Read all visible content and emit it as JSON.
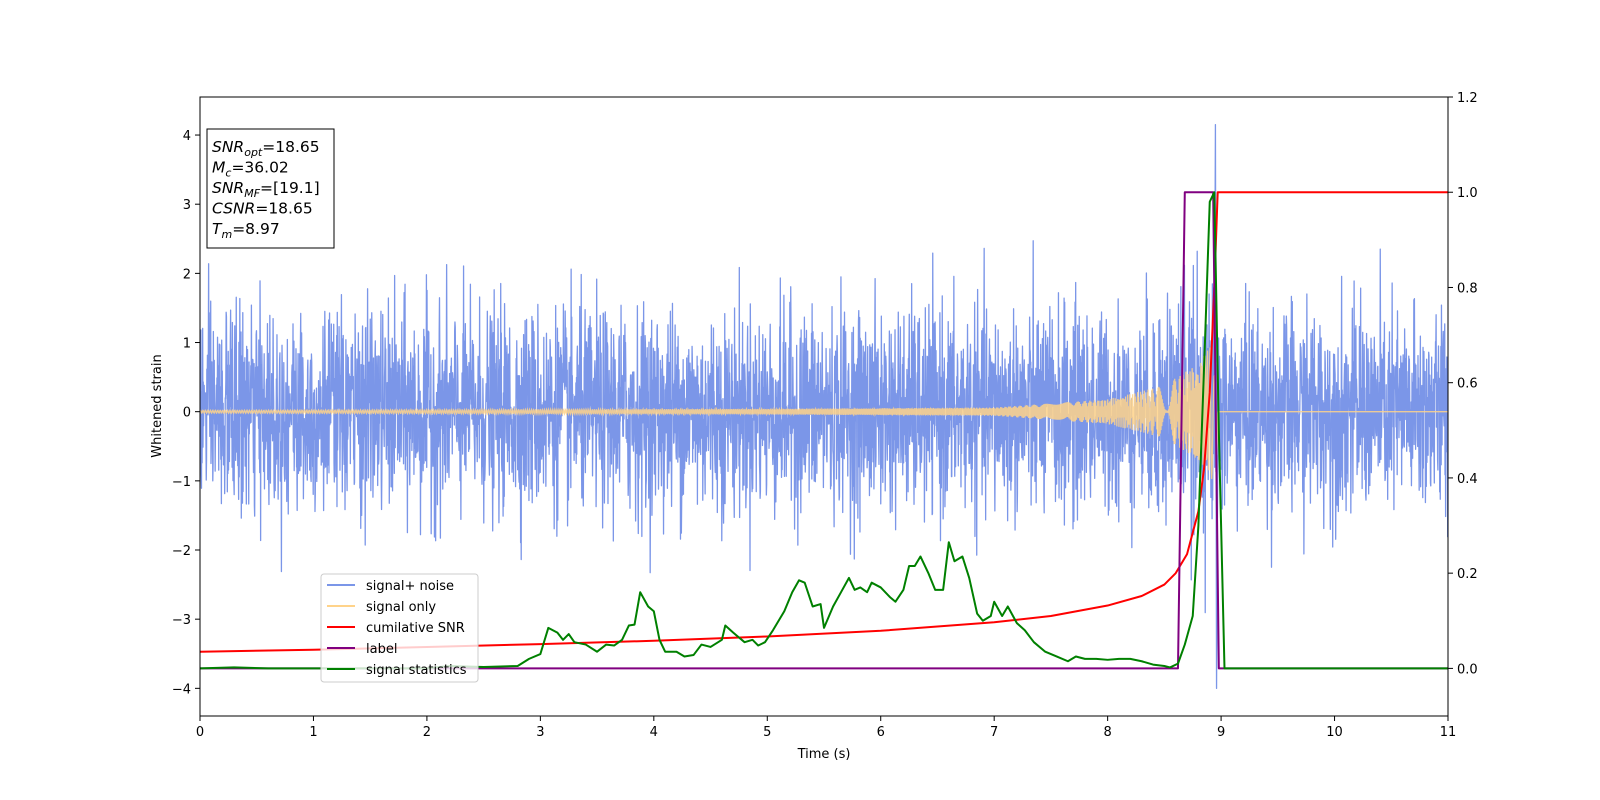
{
  "chart_data": {
    "type": "line",
    "xlabel": "Time (s)",
    "ylabel": "Whitened strain",
    "xlim": [
      0,
      11
    ],
    "ylim_left": [
      -4.4,
      4.55
    ],
    "ylim_right": [
      -0.1,
      1.2
    ],
    "xticks": [
      "0",
      "1",
      "2",
      "3",
      "4",
      "5",
      "6",
      "7",
      "8",
      "9",
      "10",
      "11"
    ],
    "yticks_left": [
      {
        "value": 4,
        "label": "4"
      },
      {
        "value": 3,
        "label": "3"
      },
      {
        "value": 2,
        "label": "2"
      },
      {
        "value": 1,
        "label": "1"
      },
      {
        "value": 0,
        "label": "0"
      },
      {
        "value": -1,
        "label": "−1"
      },
      {
        "value": -2,
        "label": "−2"
      },
      {
        "value": -3,
        "label": "−3"
      },
      {
        "value": -4,
        "label": "−4"
      }
    ],
    "yticks_right": [
      {
        "value": 1.2,
        "label": "1.2"
      },
      {
        "value": 1.0,
        "label": "1.0"
      },
      {
        "value": 0.8,
        "label": "0.8"
      },
      {
        "value": 0.6,
        "label": "0.6"
      },
      {
        "value": 0.4,
        "label": "0.4"
      },
      {
        "value": 0.2,
        "label": "0.2"
      },
      {
        "value": 0.0,
        "label": "0.0"
      }
    ],
    "legend": {
      "placement": "lower-left",
      "entries": [
        {
          "name": "signal+ noise",
          "color": "#7b96e8"
        },
        {
          "name": "signal only",
          "color": "#ffd38a"
        },
        {
          "name": "cumilative SNR",
          "color": "#ff0000"
        },
        {
          "name": "label",
          "color": "#800080"
        },
        {
          "name": "signal statistics",
          "color": "#008000"
        }
      ]
    },
    "annotation_box": {
      "placement": "top-left",
      "lines": [
        {
          "main": "SNR",
          "sub": "opt",
          "value": "=18.65"
        },
        {
          "main": "M",
          "sub": "c",
          "value": "=36.02"
        },
        {
          "main": "SNR",
          "sub": "MF",
          "value": "=[19.1]"
        },
        {
          "main": "CSNR",
          "sub": "",
          "value": "=18.65"
        },
        {
          "main": "T",
          "sub": "m",
          "value": "=8.97"
        }
      ]
    },
    "series": [
      {
        "name": "signal+ noise",
        "axis": "left",
        "color": "#7b96e8",
        "kind": "gaussian-noise-plus-chirp",
        "noise_envelope_peak": 2.3,
        "peak_time": 8.95,
        "peak_value": 4.15,
        "min_time": 8.97,
        "min_value": -4.0
      },
      {
        "name": "signal only",
        "axis": "left",
        "color": "#ffd38a",
        "kind": "chirp",
        "merger_time": 8.97,
        "amplitude_points": [
          [
            0,
            0.02
          ],
          [
            5,
            0.04
          ],
          [
            7,
            0.06
          ],
          [
            8,
            0.18
          ],
          [
            8.5,
            0.38
          ],
          [
            8.8,
            0.7
          ],
          [
            8.95,
            1.05
          ],
          [
            8.98,
            0
          ]
        ]
      },
      {
        "name": "cumilative SNR",
        "axis": "right",
        "color": "#ff0000",
        "points": [
          [
            0,
            0.035
          ],
          [
            1,
            0.039
          ],
          [
            2,
            0.045
          ],
          [
            3,
            0.051
          ],
          [
            4,
            0.058
          ],
          [
            5,
            0.067
          ],
          [
            6,
            0.079
          ],
          [
            7,
            0.097
          ],
          [
            7.5,
            0.11
          ],
          [
            8,
            0.132
          ],
          [
            8.3,
            0.152
          ],
          [
            8.5,
            0.176
          ],
          [
            8.6,
            0.2
          ],
          [
            8.7,
            0.24
          ],
          [
            8.8,
            0.33
          ],
          [
            8.85,
            0.42
          ],
          [
            8.9,
            0.58
          ],
          [
            8.94,
            0.8
          ],
          [
            8.97,
            1.0
          ],
          [
            11,
            1.0
          ]
        ]
      },
      {
        "name": "label",
        "axis": "right",
        "color": "#800080",
        "points": [
          [
            0,
            0
          ],
          [
            8.62,
            0
          ],
          [
            8.68,
            1.0
          ],
          [
            8.93,
            1.0
          ],
          [
            8.98,
            0
          ],
          [
            11,
            0
          ]
        ]
      },
      {
        "name": "signal statistics",
        "axis": "right",
        "color": "#008000",
        "points": [
          [
            0,
            0.0
          ],
          [
            0.3,
            0.002
          ],
          [
            0.6,
            0.0
          ],
          [
            2.0,
            0.0
          ],
          [
            2.2,
            0.005
          ],
          [
            2.5,
            0.003
          ],
          [
            2.8,
            0.005
          ],
          [
            2.9,
            0.02
          ],
          [
            3.0,
            0.03
          ],
          [
            3.07,
            0.085
          ],
          [
            3.15,
            0.075
          ],
          [
            3.2,
            0.06
          ],
          [
            3.25,
            0.072
          ],
          [
            3.3,
            0.055
          ],
          [
            3.4,
            0.05
          ],
          [
            3.5,
            0.035
          ],
          [
            3.58,
            0.05
          ],
          [
            3.65,
            0.048
          ],
          [
            3.72,
            0.06
          ],
          [
            3.78,
            0.09
          ],
          [
            3.83,
            0.092
          ],
          [
            3.88,
            0.16
          ],
          [
            3.95,
            0.13
          ],
          [
            4.0,
            0.12
          ],
          [
            4.05,
            0.06
          ],
          [
            4.1,
            0.035
          ],
          [
            4.2,
            0.035
          ],
          [
            4.27,
            0.025
          ],
          [
            4.35,
            0.028
          ],
          [
            4.42,
            0.05
          ],
          [
            4.5,
            0.045
          ],
          [
            4.6,
            0.06
          ],
          [
            4.63,
            0.09
          ],
          [
            4.7,
            0.075
          ],
          [
            4.8,
            0.055
          ],
          [
            4.87,
            0.06
          ],
          [
            4.92,
            0.048
          ],
          [
            4.98,
            0.055
          ],
          [
            5.05,
            0.08
          ],
          [
            5.15,
            0.12
          ],
          [
            5.22,
            0.16
          ],
          [
            5.28,
            0.185
          ],
          [
            5.33,
            0.18
          ],
          [
            5.4,
            0.13
          ],
          [
            5.47,
            0.135
          ],
          [
            5.5,
            0.085
          ],
          [
            5.58,
            0.13
          ],
          [
            5.65,
            0.16
          ],
          [
            5.72,
            0.19
          ],
          [
            5.77,
            0.165
          ],
          [
            5.82,
            0.17
          ],
          [
            5.88,
            0.16
          ],
          [
            5.92,
            0.18
          ],
          [
            6.0,
            0.17
          ],
          [
            6.08,
            0.15
          ],
          [
            6.13,
            0.14
          ],
          [
            6.2,
            0.165
          ],
          [
            6.25,
            0.215
          ],
          [
            6.3,
            0.215
          ],
          [
            6.35,
            0.235
          ],
          [
            6.42,
            0.2
          ],
          [
            6.48,
            0.165
          ],
          [
            6.55,
            0.165
          ],
          [
            6.6,
            0.265
          ],
          [
            6.65,
            0.225
          ],
          [
            6.72,
            0.235
          ],
          [
            6.78,
            0.19
          ],
          [
            6.85,
            0.115
          ],
          [
            6.9,
            0.1
          ],
          [
            6.97,
            0.11
          ],
          [
            7.0,
            0.14
          ],
          [
            7.07,
            0.11
          ],
          [
            7.12,
            0.13
          ],
          [
            7.2,
            0.095
          ],
          [
            7.27,
            0.08
          ],
          [
            7.35,
            0.055
          ],
          [
            7.45,
            0.035
          ],
          [
            7.55,
            0.025
          ],
          [
            7.65,
            0.015
          ],
          [
            7.72,
            0.025
          ],
          [
            7.8,
            0.02
          ],
          [
            7.9,
            0.02
          ],
          [
            8.0,
            0.018
          ],
          [
            8.1,
            0.02
          ],
          [
            8.2,
            0.02
          ],
          [
            8.3,
            0.015
          ],
          [
            8.4,
            0.008
          ],
          [
            8.5,
            0.005
          ],
          [
            8.55,
            0.002
          ],
          [
            8.62,
            0.01
          ],
          [
            8.68,
            0.05
          ],
          [
            8.75,
            0.11
          ],
          [
            8.8,
            0.3
          ],
          [
            8.86,
            0.7
          ],
          [
            8.9,
            0.98
          ],
          [
            8.94,
            1.0
          ],
          [
            8.98,
            0.5
          ],
          [
            9.03,
            0.0
          ],
          [
            11,
            0.0
          ]
        ]
      }
    ]
  }
}
